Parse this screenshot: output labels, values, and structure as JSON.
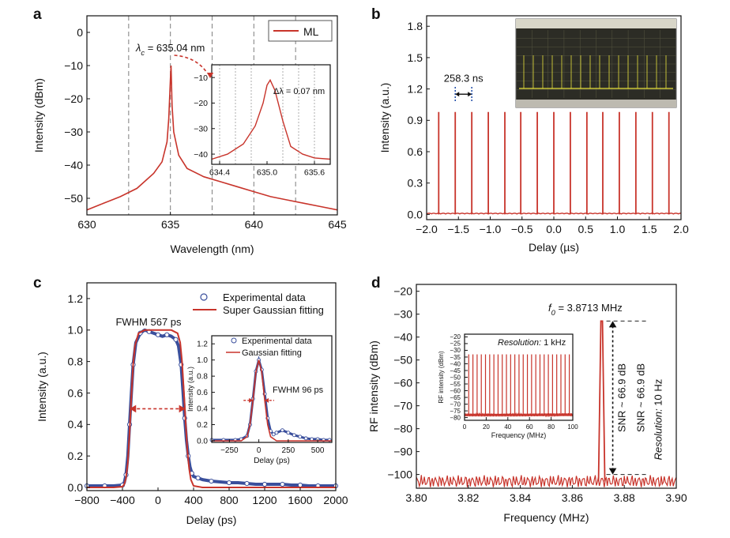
{
  "colors": {
    "trace": "#c8342b",
    "marker": "#3a4f9c",
    "axis": "#111111",
    "grid": "#888888",
    "scope_bg": "#2c2c25",
    "scope_trace": "#e8e23c"
  },
  "chart_data": [
    {
      "panel": "a",
      "type": "line",
      "xlabel": "Wavelength (nm)",
      "ylabel": "Intensity (dBm)",
      "xlim": [
        630,
        645
      ],
      "ylim": [
        -55,
        5
      ],
      "xticks": [
        630,
        635,
        640,
        645
      ],
      "yticks": [
        0,
        -10,
        -20,
        -30,
        -40,
        -50
      ],
      "xtick_labels": [
        "630",
        "635",
        "640",
        "645"
      ],
      "ytick_labels": [
        "0",
        "−10",
        "−20",
        "−30",
        "−40",
        "−50"
      ],
      "vlines": [
        632.5,
        635,
        637.5,
        640,
        642.5
      ],
      "legend": {
        "label": "ML",
        "placement": "top-right"
      },
      "peak_label": "λc = 635.04 nm",
      "peak_prefix": "λ",
      "peak_sub": "c",
      "peak_text": " = 635.04 nm",
      "series": [
        {
          "x": [
            630,
            631,
            632,
            633,
            634,
            634.5,
            634.8,
            634.9,
            635.0,
            635.04,
            635.1,
            635.2,
            635.5,
            636,
            637,
            638,
            639,
            640,
            641,
            642,
            643,
            644,
            645
          ],
          "y": [
            -53.5,
            -51.5,
            -49.5,
            -47,
            -42.5,
            -39,
            -33,
            -26,
            -14,
            -10,
            -22,
            -30,
            -37,
            -41,
            -43.5,
            -45,
            -46.5,
            -48,
            -49.5,
            -50.5,
            -51.5,
            -52.5,
            -53.5
          ]
        }
      ],
      "inset": {
        "xlim": [
          634.3,
          635.8
        ],
        "ylim": [
          -44,
          -5
        ],
        "xticks": [
          634.4,
          635.0,
          635.6
        ],
        "yticks": [
          -10,
          -20,
          -30,
          -40
        ],
        "xtick_labels": [
          "634.4",
          "635.0",
          "635.6"
        ],
        "ytick_labels": [
          "−10",
          "−20",
          "−30",
          "−40"
        ],
        "vlines": [
          634.4,
          634.6,
          634.8,
          635.2,
          635.4,
          635.6
        ],
        "annotation": "Δλ = 0.07 nm",
        "x": [
          634.3,
          634.5,
          634.7,
          634.85,
          634.95,
          635.0,
          635.04,
          635.1,
          635.2,
          635.3,
          635.45,
          635.6,
          635.8
        ],
        "y": [
          -42,
          -40,
          -36,
          -29,
          -20,
          -13,
          -11,
          -15,
          -27,
          -37,
          -40,
          -41.5,
          -42
        ]
      }
    },
    {
      "panel": "b",
      "type": "line",
      "xlabel": "Delay (µs)",
      "ylabel": "Intensity (a.u.)",
      "xlim": [
        -2.0,
        2.0
      ],
      "ylim": [
        -0.05,
        1.9
      ],
      "xticks": [
        -2.0,
        -1.5,
        -1.0,
        -0.5,
        0.0,
        0.5,
        1.0,
        1.5,
        2.0
      ],
      "yticks": [
        0.0,
        0.3,
        0.6,
        0.9,
        1.2,
        1.5,
        1.8
      ],
      "xtick_labels": [
        "−2.0",
        "−1.5",
        "−1.0",
        "−0.5",
        "0.0",
        "0.5",
        "1.0",
        "1.5",
        "2.0"
      ],
      "ytick_labels": [
        "0.0",
        "0.3",
        "0.6",
        "0.9",
        "1.2",
        "1.5",
        "1.8"
      ],
      "pulse_positions": [
        -1.81,
        -1.55,
        -1.29,
        -1.03,
        -0.77,
        -0.52,
        -0.26,
        0.0,
        0.26,
        0.52,
        0.77,
        1.03,
        1.29,
        1.55,
        1.81
      ],
      "pulse_height": 0.98,
      "period_label": "258.3 ns"
    },
    {
      "panel": "c",
      "type": "scatter",
      "xlabel": "Delay (ps)",
      "ylabel": "Intensity (a.u.)",
      "xlim": [
        -800,
        2000
      ],
      "ylim": [
        -0.02,
        1.3
      ],
      "xticks": [
        -800,
        -400,
        0,
        400,
        800,
        1200,
        1600,
        2000
      ],
      "yticks": [
        0.0,
        0.2,
        0.4,
        0.6,
        0.8,
        1.0,
        1.2
      ],
      "xtick_labels": [
        "−800",
        "−400",
        "0",
        "400",
        "800",
        "1200",
        "1600",
        "2000"
      ],
      "ytick_labels": [
        "0.0",
        "0.2",
        "0.4",
        "0.6",
        "0.8",
        "1.0",
        "1.2"
      ],
      "legend": [
        "Experimental data",
        "Super Gaussian fitting"
      ],
      "fwhm_label": "FWHM 567 ps",
      "data_x": [
        -800,
        -700,
        -600,
        -500,
        -400,
        -380,
        -360,
        -340,
        -320,
        -300,
        -280,
        -250,
        -200,
        -150,
        -100,
        -50,
        0,
        50,
        100,
        150,
        200,
        230,
        260,
        280,
        300,
        320,
        340,
        360,
        380,
        400,
        450,
        500,
        600,
        700,
        800,
        900,
        1000,
        1100,
        1200,
        1300,
        1400,
        1500,
        1600,
        1700,
        1800,
        1900,
        2000
      ],
      "data_y": [
        0.01,
        0.01,
        0.01,
        0.01,
        0.015,
        0.03,
        0.08,
        0.2,
        0.4,
        0.6,
        0.78,
        0.92,
        0.98,
        1.0,
        0.99,
        0.98,
        0.97,
        0.96,
        0.97,
        0.96,
        0.94,
        0.9,
        0.78,
        0.62,
        0.44,
        0.3,
        0.2,
        0.13,
        0.09,
        0.07,
        0.06,
        0.05,
        0.04,
        0.035,
        0.03,
        0.03,
        0.025,
        0.02,
        0.02,
        0.02,
        0.02,
        0.015,
        0.015,
        0.01,
        0.01,
        0.01,
        0.01
      ],
      "fit_x": [
        -800,
        -500,
        -400,
        -380,
        -360,
        -340,
        -320,
        -300,
        -280,
        -260,
        -220,
        -150,
        0,
        150,
        220,
        250,
        270,
        290,
        310,
        330,
        350,
        370,
        400,
        500,
        800,
        2000
      ],
      "fit_y": [
        0.0,
        0.0,
        0.005,
        0.02,
        0.06,
        0.16,
        0.35,
        0.58,
        0.78,
        0.9,
        0.98,
        1.0,
        1.0,
        1.0,
        0.98,
        0.92,
        0.8,
        0.62,
        0.42,
        0.24,
        0.12,
        0.05,
        0.01,
        0.0,
        0.0,
        0.0
      ],
      "inset": {
        "xlim": [
          -400,
          620
        ],
        "ylim": [
          -0.02,
          1.3
        ],
        "xticks": [
          -250,
          0,
          250,
          500
        ],
        "yticks": [
          0.0,
          0.2,
          0.4,
          0.6,
          0.8,
          1.0,
          1.2
        ],
        "xtick_labels": [
          "−250",
          "0",
          "250",
          "500"
        ],
        "ytick_labels": [
          "0.0",
          "0.2",
          "0.4",
          "0.6",
          "0.8",
          "1.0",
          "1.2"
        ],
        "xlabel": "Delay (ps)",
        "ylabel": "Intensity (a.u.)",
        "legend": [
          "Experimental data",
          "Gaussian fitting"
        ],
        "fwhm_label": "FWHM 96 ps",
        "data_x": [
          -400,
          -300,
          -200,
          -150,
          -100,
          -75,
          -50,
          -25,
          0,
          25,
          50,
          75,
          100,
          125,
          150,
          200,
          250,
          300,
          350,
          400,
          450,
          500,
          550,
          600
        ],
        "data_y": [
          0.01,
          0.01,
          0.01,
          0.02,
          0.06,
          0.2,
          0.52,
          0.86,
          1.0,
          0.88,
          0.58,
          0.28,
          0.12,
          0.08,
          0.1,
          0.13,
          0.1,
          0.07,
          0.05,
          0.03,
          0.02,
          0.02,
          0.01,
          0.01
        ],
        "fit_x": [
          -400,
          -150,
          -100,
          -75,
          -50,
          -25,
          0,
          25,
          50,
          75,
          100,
          150,
          620
        ],
        "fit_y": [
          0.0,
          0.0,
          0.05,
          0.2,
          0.5,
          0.85,
          1.0,
          0.85,
          0.5,
          0.2,
          0.05,
          0.0,
          0.0
        ]
      }
    },
    {
      "panel": "d",
      "type": "line",
      "xlabel": "Frequency (MHz)",
      "ylabel": "RF intensity (dBm)",
      "xlim": [
        3.8,
        3.9
      ],
      "ylim": [
        -106,
        -17
      ],
      "xticks": [
        3.8,
        3.82,
        3.84,
        3.86,
        3.88,
        3.9
      ],
      "yticks": [
        -20,
        -30,
        -40,
        -50,
        -60,
        -70,
        -80,
        -90,
        -100
      ],
      "xtick_labels": [
        "3.80",
        "3.82",
        "3.84",
        "3.86",
        "3.88",
        "3.90"
      ],
      "ytick_labels": [
        "−20",
        "−30",
        "−40",
        "−50",
        "−60",
        "−70",
        "−80",
        "−90",
        "−100"
      ],
      "peak_x": 3.8713,
      "peak_y": -33,
      "noise_floor": -103,
      "f0_label": "f0 = 3.8713 MHz",
      "f0_prefix": "f",
      "f0_sub": "0",
      "f0_text": " = 3.8713 MHz",
      "snr_label": "SNR ~ 66.9 dB",
      "resolution_label": "Resolution: 10 Hz",
      "resolution_prefix": "Resolution:",
      "resolution_value": " 10 Hz",
      "inset": {
        "xlim": [
          0,
          100
        ],
        "ylim": [
          -82,
          -18
        ],
        "xticks": [
          0,
          20,
          40,
          60,
          80,
          100
        ],
        "yticks": [
          -20,
          -25,
          -30,
          -35,
          -40,
          -45,
          -50,
          -55,
          -60,
          -65,
          -70,
          -75,
          -80
        ],
        "xtick_labels": [
          "0",
          "20",
          "40",
          "60",
          "80",
          "100"
        ],
        "ytick_labels": [
          "−20",
          "−25",
          "−30",
          "−35",
          "−40",
          "−45",
          "−50",
          "−55",
          "−60",
          "−65",
          "−70",
          "−75",
          "−80"
        ],
        "xlabel": "Frequency (MHz)",
        "ylabel": "RF intensity (dBm)",
        "resolution_prefix": "Resolution:",
        "resolution_value": " 1 kHz",
        "fundamental": 3.8713,
        "peak_y": -33,
        "floor_y": -78
      }
    }
  ]
}
